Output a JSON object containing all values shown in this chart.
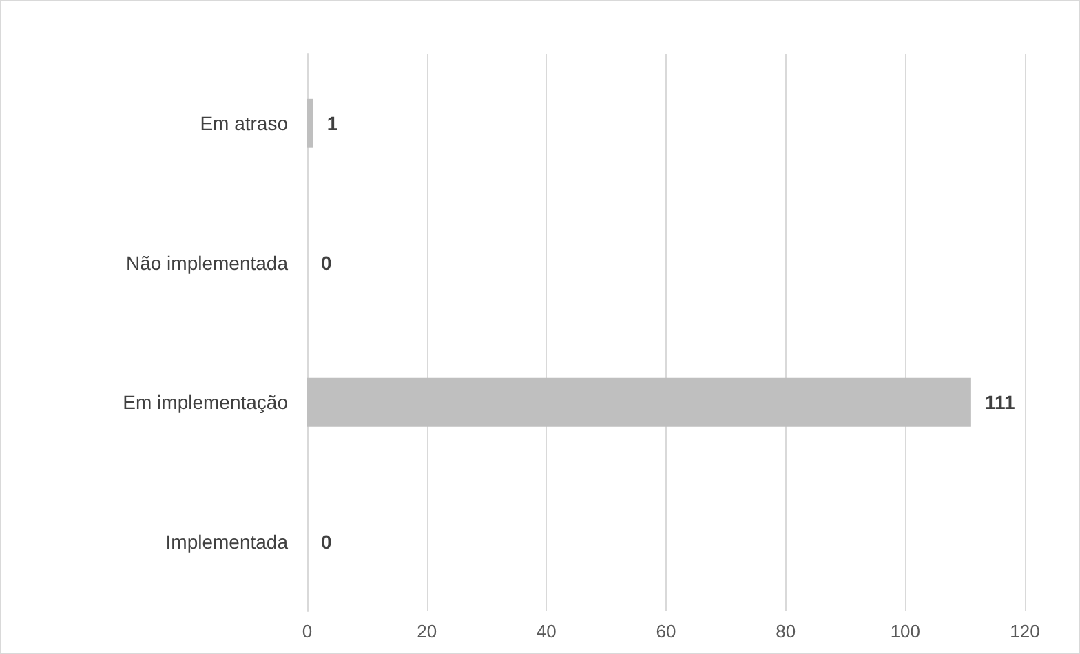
{
  "chart_data": {
    "type": "bar",
    "orientation": "horizontal",
    "categories": [
      "Em atraso",
      "Não implementada",
      "Em implementação",
      "Implementada"
    ],
    "values": [
      1,
      0,
      111,
      0
    ],
    "color": "#bfbfbf",
    "xlim": [
      0,
      120
    ],
    "xticks": [
      0,
      20,
      40,
      60,
      80,
      100,
      120
    ],
    "grid": "x",
    "data_labels": true
  }
}
